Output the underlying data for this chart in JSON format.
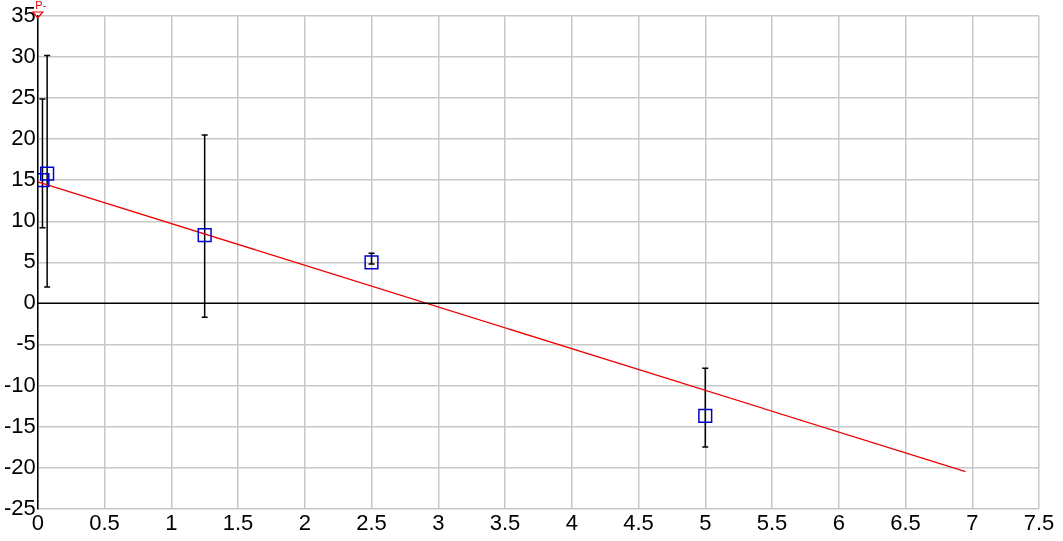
{
  "chart_data": {
    "type": "scatter",
    "grid": true,
    "legend": false,
    "xlim": [
      0,
      7.5
    ],
    "xticks": [
      0,
      0.5,
      1,
      1.5,
      2,
      2.5,
      3,
      3.5,
      4,
      4.5,
      5,
      5.5,
      6,
      6.5,
      7,
      7.5
    ],
    "ylim": [
      -25,
      35
    ],
    "yticks": [
      -25,
      -20,
      -15,
      -10,
      -5,
      0,
      5,
      10,
      15,
      20,
      25,
      30,
      35
    ],
    "series": [
      {
        "marker": "square",
        "color": "#0000cc",
        "x": [
          0.07,
          0.035,
          1.25,
          2.5,
          5
        ],
        "values": [
          15.8,
          15,
          8.3,
          5,
          -13.7
        ],
        "errors": [
          [
            2,
            30.2
          ],
          [
            9.2,
            24.9
          ],
          [
            -1.7,
            20.5
          ],
          [
            4.8,
            6.1
          ],
          [
            -17.5,
            -7.9
          ]
        ]
      },
      {
        "type": "line",
        "marker": "none",
        "color": "#ee0000",
        "x": [
          0,
          6.95
        ],
        "values": [
          14.8,
          -20.5
        ]
      }
    ],
    "ref_lines": [
      {
        "axis": "y",
        "value": 0,
        "color": "#000000"
      }
    ],
    "annotations": [
      {
        "text": "P-",
        "x": 0,
        "y": 35
      }
    ]
  }
}
